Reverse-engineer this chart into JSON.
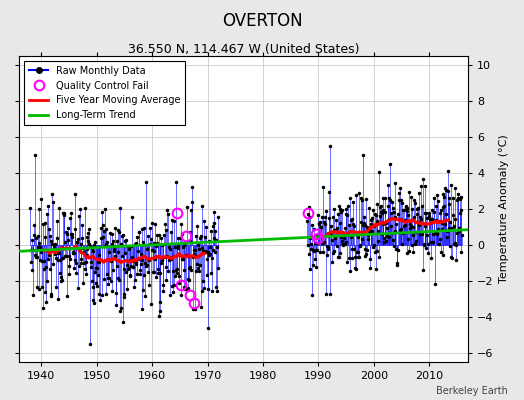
{
  "title": "OVERTON",
  "subtitle": "36.550 N, 114.467 W (United States)",
  "ylabel": "Temperature Anomaly (°C)",
  "watermark": "Berkeley Earth",
  "xlim": [
    1936,
    2017
  ],
  "ylim": [
    -6.5,
    10.5
  ],
  "yticks": [
    -6,
    -4,
    -2,
    0,
    2,
    4,
    6,
    8,
    10
  ],
  "xticks": [
    1940,
    1950,
    1960,
    1970,
    1980,
    1990,
    2000,
    2010
  ],
  "raw_color": "#0000FF",
  "moving_avg_color": "#FF0000",
  "trend_color": "#00BB00",
  "qc_fail_color": "#FF00FF",
  "plot_bg_color": "#FFFFFF",
  "fig_bg_color": "#E8E8E8",
  "grid_color": "#CCCCCC",
  "title_fontsize": 12,
  "subtitle_fontsize": 9,
  "label_fontsize": 8,
  "tick_fontsize": 8
}
